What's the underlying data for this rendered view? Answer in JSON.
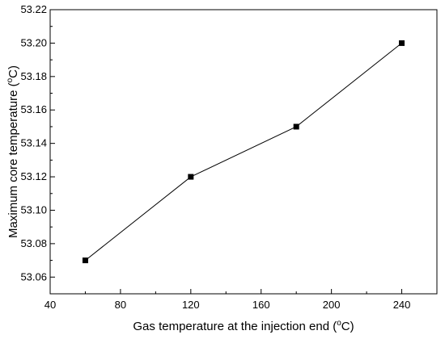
{
  "chart_data": {
    "type": "line",
    "title": "",
    "xlabel": {
      "pre": "Gas temperature at the injection end (",
      "sup": "o",
      "post": "C)"
    },
    "ylabel": {
      "pre": "Maximum core temperature (",
      "sup": "o",
      "post": "C)"
    },
    "xlim": [
      40,
      260
    ],
    "ylim": [
      53.05,
      53.22
    ],
    "x_ticks": [
      40,
      80,
      120,
      160,
      200,
      240
    ],
    "y_ticks": [
      53.06,
      53.08,
      53.1,
      53.12,
      53.14,
      53.16,
      53.18,
      53.2,
      53.22
    ],
    "y_tick_labels": [
      "53.06",
      "53.08",
      "53.10",
      "53.12",
      "53.14",
      "53.16",
      "53.18",
      "53.20",
      "53.22"
    ],
    "x": [
      60,
      120,
      180,
      240
    ],
    "series": [
      {
        "values": [
          53.07,
          53.12,
          53.15,
          53.2
        ],
        "marker": "square",
        "color": "#000000"
      }
    ],
    "grid": false,
    "legend": "none"
  }
}
